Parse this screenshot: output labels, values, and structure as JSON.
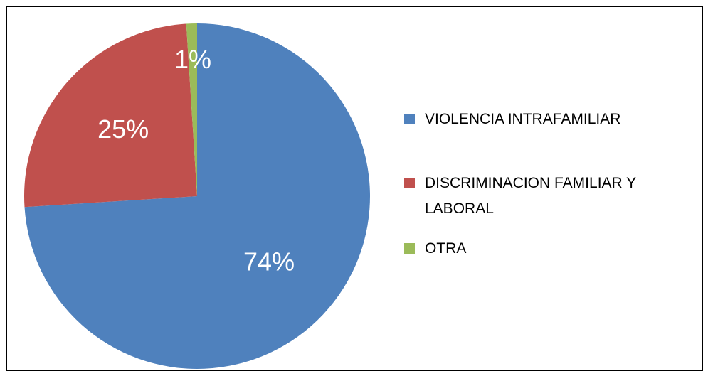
{
  "chart_data": {
    "type": "pie",
    "categories": [
      "VIOLENCIA INTRAFAMILIAR",
      "DISCRIMINACION FAMILIAR Y LABORAL",
      "OTRA"
    ],
    "values": [
      74,
      25,
      1
    ],
    "value_labels": [
      "74%",
      "25%",
      "1%"
    ],
    "colors": [
      "#4f81bd",
      "#c0504d",
      "#9bbb59"
    ],
    "legend": "right"
  }
}
